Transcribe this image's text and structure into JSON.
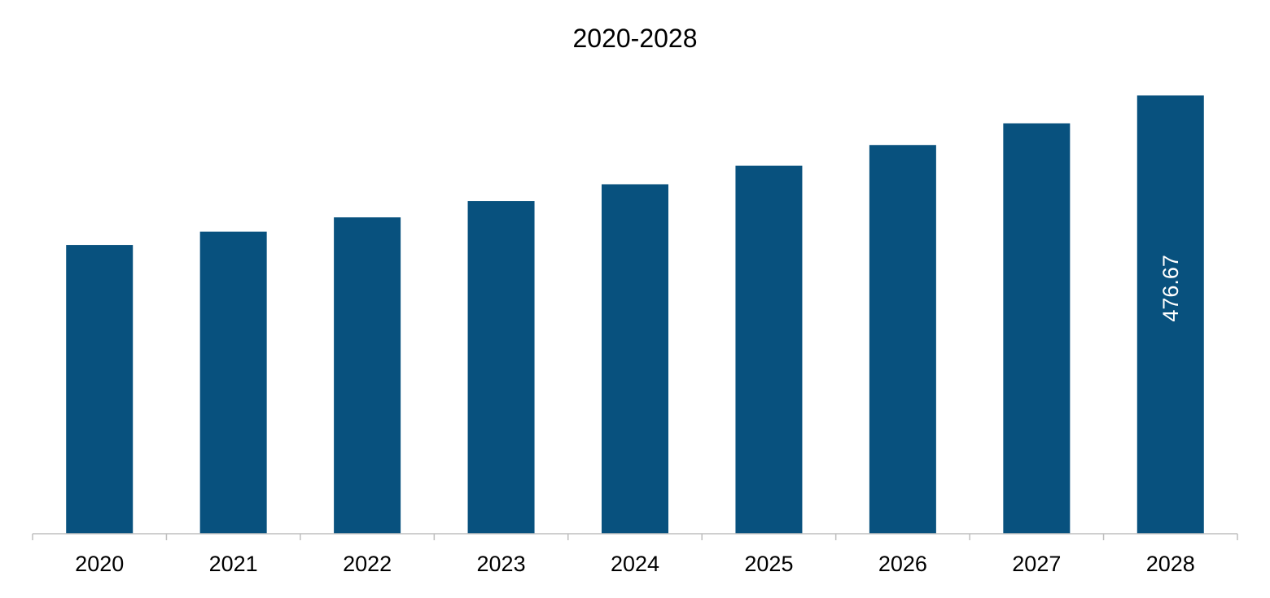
{
  "chart_data": {
    "type": "bar",
    "title": "2020-2028",
    "xlabel": "",
    "ylabel": "",
    "categories": [
      "2020",
      "2021",
      "2022",
      "2023",
      "2024",
      "2025",
      "2026",
      "2027",
      "2028"
    ],
    "values": [
      314.1,
      328.6,
      344.1,
      361.9,
      380.1,
      400.3,
      422.8,
      446.4,
      476.67
    ],
    "data_labels": {
      "8": "476.67"
    },
    "ylim": [
      0,
      500
    ],
    "grid": false,
    "legend": "none",
    "colors": {
      "bar": "#08517E",
      "axis": "#bfbfbf",
      "text": "#000000",
      "label_on_bar": "#ffffff"
    }
  }
}
